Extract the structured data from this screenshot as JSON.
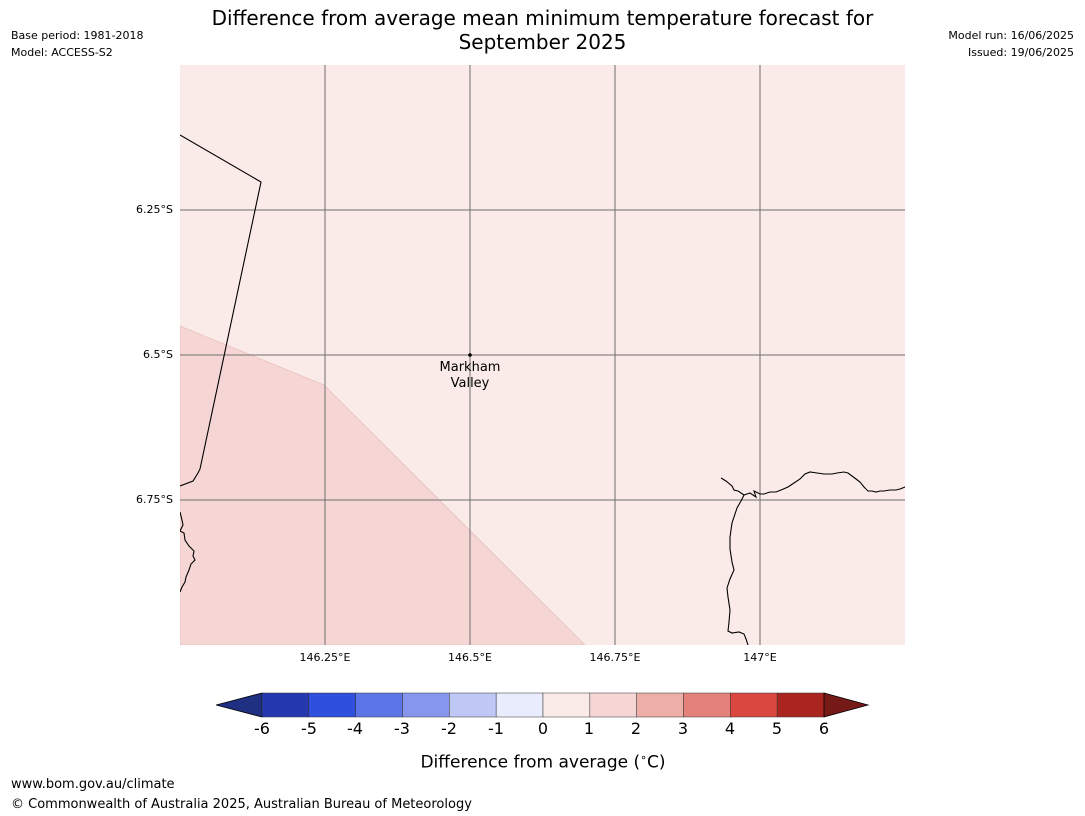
{
  "title": {
    "line1": "Difference from average mean minimum temperature forecast for",
    "line2": "September 2025"
  },
  "meta_left": {
    "base_period": "Base period: 1981-2018",
    "model": "Model: ACCESS-S2"
  },
  "meta_right": {
    "model_run": "Model run: 16/06/2025",
    "issued": "Issued: 19/06/2025"
  },
  "map": {
    "lat_labels": [
      "6.25°S",
      "6.5°S",
      "6.75°S"
    ],
    "lon_labels": [
      "146.25°E",
      "146.5°E",
      "146.75°E",
      "147°E"
    ],
    "extent": {
      "lon_min": 146.0,
      "lon_max": 147.25,
      "lat_north": -6.0,
      "lat_south": -7.0
    },
    "place": {
      "name_line1": "Markham",
      "name_line2": "Valley",
      "lon": 146.5,
      "lat": -6.5
    },
    "fills": {
      "zero_to_one": "#fbebe8",
      "one_to_two": "#f5d6d4"
    },
    "gridline_color": "#6e6e6e",
    "coast_color": "#000000"
  },
  "colorbar": {
    "ticks": [
      "-6",
      "-5",
      "-4",
      "-3",
      "-2",
      "-1",
      "0",
      "1",
      "2",
      "3",
      "4",
      "5",
      "6"
    ],
    "under_color": "#1f2f82",
    "over_color": "#761a18",
    "colors": [
      "#2538b0",
      "#2f50dd",
      "#5b74e6",
      "#8596ec",
      "#bfc7f5",
      "#e9ecfc",
      "#fbebe8",
      "#f5d6d4",
      "#edaea8",
      "#e4817b",
      "#d94740",
      "#aa2520"
    ],
    "label": "Difference from average (",
    "label_degree": "∘",
    "label_unit": "C)"
  },
  "footer": {
    "website": "www.bom.gov.au/climate",
    "copyright": "© Commonwealth of Australia 2025, Australian Bureau of Meteorology"
  }
}
